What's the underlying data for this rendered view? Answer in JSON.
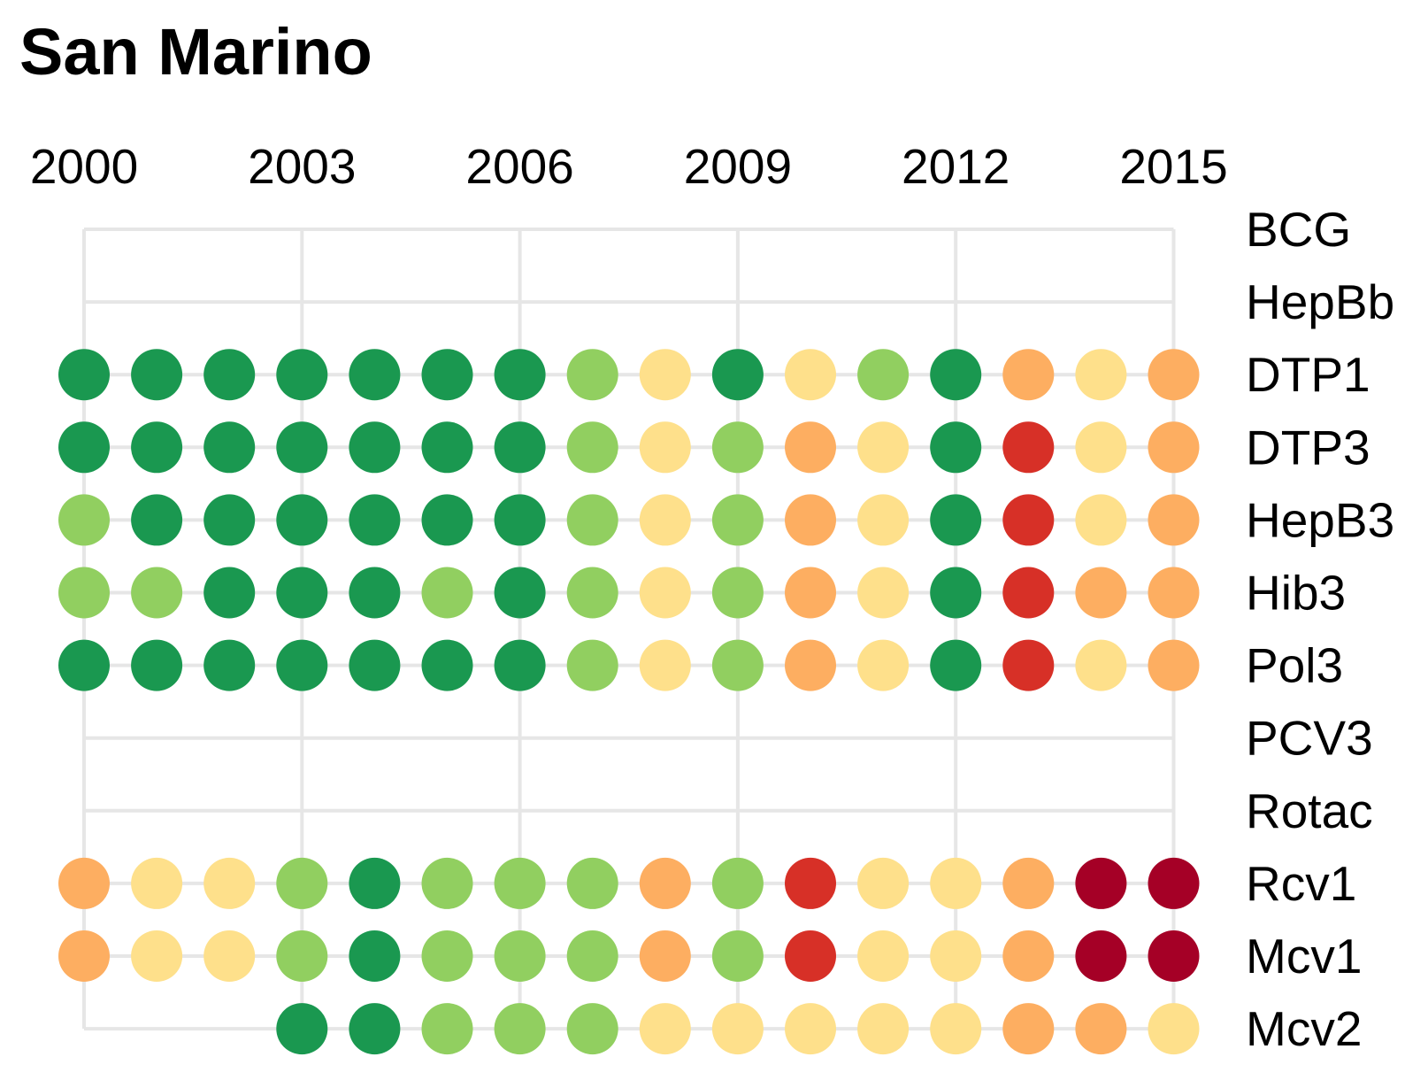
{
  "chart_data": {
    "type": "heatmap",
    "title": "San Marino",
    "xlabel": "",
    "ylabel": "",
    "x_tick_labels": [
      "2000",
      "2003",
      "2006",
      "2009",
      "2012",
      "2015"
    ],
    "years": [
      2000,
      2001,
      2002,
      2003,
      2004,
      2005,
      2006,
      2007,
      2008,
      2009,
      2010,
      2011,
      2012,
      2013,
      2014,
      2015
    ],
    "rows": [
      {
        "name": "BCG",
        "values": [
          null,
          null,
          null,
          null,
          null,
          null,
          null,
          null,
          null,
          null,
          null,
          null,
          null,
          null,
          null,
          null
        ]
      },
      {
        "name": "HepBb",
        "values": [
          null,
          null,
          null,
          null,
          null,
          null,
          null,
          null,
          null,
          null,
          null,
          null,
          null,
          null,
          null,
          null
        ]
      },
      {
        "name": "DTP1",
        "values": [
          5,
          5,
          5,
          5,
          5,
          5,
          5,
          4,
          3,
          5,
          3,
          4,
          5,
          2,
          3,
          2
        ]
      },
      {
        "name": "DTP3",
        "values": [
          5,
          5,
          5,
          5,
          5,
          5,
          5,
          4,
          3,
          4,
          2,
          3,
          5,
          1,
          3,
          2
        ]
      },
      {
        "name": "HepB3",
        "values": [
          4,
          5,
          5,
          5,
          5,
          5,
          5,
          4,
          3,
          4,
          2,
          3,
          5,
          1,
          3,
          2
        ]
      },
      {
        "name": "Hib3",
        "values": [
          4,
          4,
          5,
          5,
          5,
          4,
          5,
          4,
          3,
          4,
          2,
          3,
          5,
          1,
          2,
          2
        ]
      },
      {
        "name": "Pol3",
        "values": [
          5,
          5,
          5,
          5,
          5,
          5,
          5,
          4,
          3,
          4,
          2,
          3,
          5,
          1,
          3,
          2
        ]
      },
      {
        "name": "PCV3",
        "values": [
          null,
          null,
          null,
          null,
          null,
          null,
          null,
          null,
          null,
          null,
          null,
          null,
          null,
          null,
          null,
          null
        ]
      },
      {
        "name": "Rotac",
        "values": [
          null,
          null,
          null,
          null,
          null,
          null,
          null,
          null,
          null,
          null,
          null,
          null,
          null,
          null,
          null,
          null
        ]
      },
      {
        "name": "Rcv1",
        "values": [
          2,
          3,
          3,
          4,
          5,
          4,
          4,
          4,
          2,
          4,
          1,
          3,
          3,
          2,
          0,
          0
        ]
      },
      {
        "name": "Mcv1",
        "values": [
          2,
          3,
          3,
          4,
          5,
          4,
          4,
          4,
          2,
          4,
          1,
          3,
          3,
          2,
          0,
          0
        ]
      },
      {
        "name": "Mcv2",
        "values": [
          null,
          null,
          null,
          5,
          5,
          4,
          4,
          4,
          3,
          3,
          3,
          3,
          3,
          2,
          2,
          3
        ]
      }
    ],
    "value_scale": "ordinal 0-5 (0 = lowest, 5 = highest)",
    "colors": {
      "0": "#a50026",
      "1": "#d73027",
      "2": "#fdae61",
      "3": "#fee08b",
      "4": "#91cf60",
      "5": "#1a9850"
    },
    "grid_color": "#e6e6e6",
    "grid": true,
    "legend": "none",
    "x_axis_position": "top",
    "y_axis_position": "right"
  }
}
